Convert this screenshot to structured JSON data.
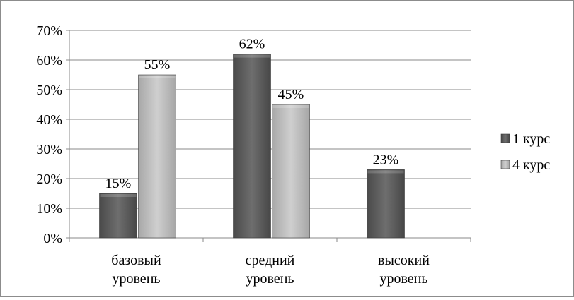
{
  "chart_data": {
    "type": "bar",
    "categories": [
      "базовый уровень",
      "средний уровень",
      "высокий уровень"
    ],
    "category_lines": [
      [
        "базовый",
        "уровень"
      ],
      [
        "средний",
        "уровень"
      ],
      [
        "высокий",
        "уровень"
      ]
    ],
    "series": [
      {
        "name": "1 курс",
        "values": [
          15,
          62,
          23
        ],
        "color": "#5f5f5f"
      },
      {
        "name": "4 курс",
        "values": [
          55,
          45,
          null
        ],
        "color": "#bdbdbd"
      }
    ],
    "data_labels": [
      [
        "15%",
        "62%",
        "23%"
      ],
      [
        "55%",
        "45%",
        ""
      ]
    ],
    "ylim": [
      0,
      70
    ],
    "yticks": [
      0,
      10,
      20,
      30,
      40,
      50,
      60,
      70
    ],
    "ytick_labels": [
      "0%",
      "10%",
      "20%",
      "30%",
      "40%",
      "50%",
      "60%",
      "70%"
    ],
    "grid": true,
    "legend_position": "right",
    "title": "",
    "xlabel": "",
    "ylabel": ""
  }
}
